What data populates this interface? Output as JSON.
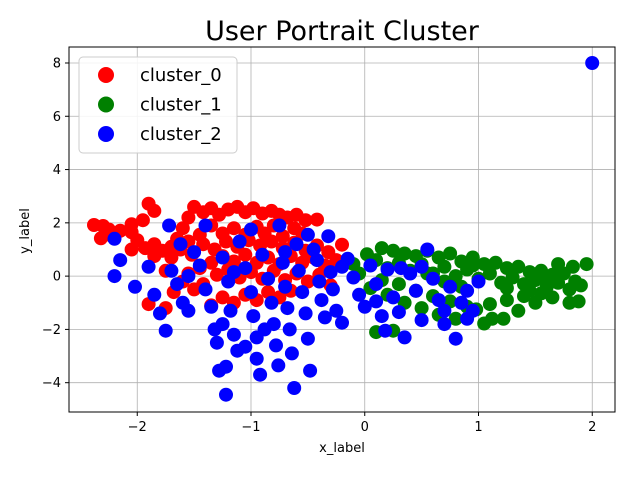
{
  "chart_data": {
    "type": "scatter",
    "title": "User Portrait Cluster",
    "xlabel": "x_label",
    "ylabel": "y_label",
    "xlim": [
      -2.6,
      2.2
    ],
    "ylim": [
      -5.1,
      8.6
    ],
    "x_ticks": [
      -2,
      -1,
      0,
      1,
      2
    ],
    "y_ticks": [
      -4,
      -2,
      0,
      2,
      4,
      6,
      8
    ],
    "grid": true,
    "legend_position": "top-left",
    "series": [
      {
        "name": "cluster_0",
        "color": "#ff0000",
        "points": [
          [
            -2.38,
            1.92
          ],
          [
            -2.3,
            1.88
          ],
          [
            -2.32,
            1.42
          ],
          [
            -2.22,
            1.5
          ],
          [
            -2.05,
            1.95
          ],
          [
            -2.05,
            1.65
          ],
          [
            -2.05,
            1.0
          ],
          [
            -1.9,
            2.72
          ],
          [
            -1.85,
            2.45
          ],
          [
            -1.93,
            1.05
          ],
          [
            -1.85,
            1.2
          ],
          [
            -1.78,
            0.95
          ],
          [
            -1.7,
            1.1
          ],
          [
            -1.65,
            1.4
          ],
          [
            -1.6,
            1.8
          ],
          [
            -1.55,
            2.2
          ],
          [
            -1.5,
            2.6
          ],
          [
            -1.42,
            2.4
          ],
          [
            -1.35,
            2.55
          ],
          [
            -1.28,
            2.3
          ],
          [
            -1.2,
            2.5
          ],
          [
            -1.12,
            2.6
          ],
          [
            -1.05,
            2.4
          ],
          [
            -0.98,
            2.55
          ],
          [
            -0.9,
            2.35
          ],
          [
            -0.82,
            2.45
          ],
          [
            -0.75,
            2.3
          ],
          [
            -0.68,
            2.2
          ],
          [
            -0.6,
            2.3
          ],
          [
            -0.52,
            2.1
          ],
          [
            -0.42,
            2.12
          ],
          [
            -0.55,
            1.6
          ],
          [
            -0.62,
            1.8
          ],
          [
            -0.72,
            1.5
          ],
          [
            -0.8,
            1.9
          ],
          [
            -0.88,
            1.6
          ],
          [
            -0.95,
            1.85
          ],
          [
            -1.05,
            1.55
          ],
          [
            -1.15,
            1.8
          ],
          [
            -1.25,
            1.6
          ],
          [
            -1.35,
            1.9
          ],
          [
            -1.45,
            1.55
          ],
          [
            -1.55,
            1.3
          ],
          [
            -1.62,
            1.0
          ],
          [
            -1.7,
            0.7
          ],
          [
            -1.52,
            0.8
          ],
          [
            -1.42,
            1.2
          ],
          [
            -1.32,
            1.0
          ],
          [
            -1.22,
            1.3
          ],
          [
            -1.12,
            1.1
          ],
          [
            -1.02,
            1.35
          ],
          [
            -0.92,
            1.15
          ],
          [
            -0.82,
            1.3
          ],
          [
            -0.72,
            1.05
          ],
          [
            -0.62,
            1.25
          ],
          [
            -0.52,
            0.95
          ],
          [
            -0.42,
            1.15
          ],
          [
            -0.32,
            0.9
          ],
          [
            -0.2,
            1.18
          ],
          [
            -0.25,
            0.6
          ],
          [
            -0.35,
            0.4
          ],
          [
            -0.45,
            0.7
          ],
          [
            -0.55,
            0.5
          ],
          [
            -0.65,
            0.75
          ],
          [
            -0.75,
            0.45
          ],
          [
            -0.85,
            0.7
          ],
          [
            -0.95,
            0.5
          ],
          [
            -1.05,
            0.8
          ],
          [
            -1.15,
            0.55
          ],
          [
            -1.25,
            0.75
          ],
          [
            -1.35,
            0.5
          ],
          [
            -1.45,
            0.3
          ],
          [
            -1.55,
            0.1
          ],
          [
            -1.6,
            -0.2
          ],
          [
            -1.5,
            -0.5
          ],
          [
            -1.42,
            -0.3
          ],
          [
            -1.3,
            0.05
          ],
          [
            -1.2,
            0.25
          ],
          [
            -1.1,
            -0.05
          ],
          [
            -1.0,
            0.15
          ],
          [
            -0.9,
            -0.1
          ],
          [
            -0.8,
            0.2
          ],
          [
            -0.7,
            -0.15
          ],
          [
            -0.6,
            0.1
          ],
          [
            -0.5,
            -0.2
          ],
          [
            -0.4,
            0.05
          ],
          [
            -0.3,
            -0.35
          ],
          [
            -0.65,
            -0.55
          ],
          [
            -0.75,
            -0.8
          ],
          [
            -0.85,
            -0.6
          ],
          [
            -0.95,
            -0.9
          ],
          [
            -1.05,
            -0.7
          ],
          [
            -1.15,
            -1.0
          ],
          [
            -1.25,
            -0.8
          ],
          [
            -1.35,
            -1.1
          ],
          [
            -1.9,
            -1.05
          ],
          [
            -1.75,
            -1.2
          ],
          [
            -1.68,
            -0.6
          ],
          [
            -1.75,
            0.2
          ],
          [
            -1.85,
            0.75
          ],
          [
            -2.0,
            1.35
          ],
          [
            -1.95,
            2.1
          ],
          [
            -2.15,
            1.7
          ],
          [
            -2.25,
            1.75
          ]
        ]
      },
      {
        "name": "cluster_1",
        "color": "#008000",
        "points": [
          [
            -0.1,
            0.45
          ],
          [
            0.02,
            0.82
          ],
          [
            0.1,
            0.6
          ],
          [
            0.15,
            1.05
          ],
          [
            0.2,
            0.3
          ],
          [
            0.25,
            0.95
          ],
          [
            0.3,
            0.5
          ],
          [
            0.35,
            0.85
          ],
          [
            0.4,
            0.2
          ],
          [
            0.45,
            0.75
          ],
          [
            0.5,
            0.45
          ],
          [
            0.55,
            0.95
          ],
          [
            0.6,
            0.1
          ],
          [
            0.65,
            0.7
          ],
          [
            0.7,
            0.35
          ],
          [
            0.75,
            0.85
          ],
          [
            0.8,
            0.0
          ],
          [
            0.85,
            0.55
          ],
          [
            0.9,
            0.25
          ],
          [
            0.95,
            0.7
          ],
          [
            1.0,
            -0.1
          ],
          [
            1.05,
            0.45
          ],
          [
            1.1,
            0.1
          ],
          [
            1.15,
            0.5
          ],
          [
            1.2,
            -0.25
          ],
          [
            1.25,
            0.3
          ],
          [
            1.3,
            -0.05
          ],
          [
            1.35,
            0.35
          ],
          [
            1.4,
            -0.3
          ],
          [
            1.45,
            0.15
          ],
          [
            1.5,
            -0.15
          ],
          [
            1.55,
            0.2
          ],
          [
            1.6,
            -0.4
          ],
          [
            1.65,
            0.05
          ],
          [
            1.7,
            -0.25
          ],
          [
            1.75,
            0.1
          ],
          [
            1.8,
            -0.5
          ],
          [
            1.85,
            -0.2
          ],
          [
            1.9,
            -0.35
          ],
          [
            1.83,
            0.35
          ],
          [
            1.95,
            0.45
          ],
          [
            1.7,
            0.45
          ],
          [
            1.55,
            -0.65
          ],
          [
            1.4,
            -0.75
          ],
          [
            1.25,
            -0.9
          ],
          [
            1.1,
            -1.05
          ],
          [
            0.98,
            -1.25
          ],
          [
            1.12,
            -1.6
          ],
          [
            1.22,
            -1.6
          ],
          [
            1.05,
            -1.78
          ],
          [
            0.9,
            -1.15
          ],
          [
            0.75,
            -0.95
          ],
          [
            0.6,
            -0.75
          ],
          [
            0.45,
            -0.55
          ],
          [
            0.3,
            -0.3
          ],
          [
            0.15,
            -0.15
          ],
          [
            0.05,
            -0.45
          ],
          [
            -0.05,
            0.1
          ],
          [
            0.2,
            -0.7
          ],
          [
            0.35,
            -1.0
          ],
          [
            0.5,
            -1.2
          ],
          [
            0.65,
            -1.45
          ],
          [
            0.8,
            -1.6
          ],
          [
            1.35,
            -1.3
          ],
          [
            1.5,
            -1.0
          ],
          [
            1.65,
            -0.8
          ],
          [
            1.8,
            -1.0
          ],
          [
            1.88,
            -0.95
          ],
          [
            0.1,
            -2.1
          ],
          [
            0.25,
            -2.05
          ],
          [
            0.95,
            0.4
          ],
          [
            0.85,
            -0.4
          ],
          [
            0.7,
            -0.2
          ],
          [
            0.55,
            0.1
          ],
          [
            1.25,
            -0.45
          ],
          [
            1.45,
            -0.55
          ],
          [
            1.6,
            -0.1
          ]
        ]
      },
      {
        "name": "cluster_2",
        "color": "#0000ff",
        "points": [
          [
            2.0,
            8.0
          ],
          [
            -2.2,
            1.4
          ],
          [
            -2.15,
            0.6
          ],
          [
            -2.2,
            0.0
          ],
          [
            -2.02,
            -0.4
          ],
          [
            -1.9,
            0.35
          ],
          [
            -1.85,
            -0.7
          ],
          [
            -1.8,
            -1.4
          ],
          [
            -1.75,
            -2.05
          ],
          [
            -1.72,
            1.9
          ],
          [
            -1.7,
            0.2
          ],
          [
            -1.65,
            -0.3
          ],
          [
            -1.6,
            -1.0
          ],
          [
            -1.55,
            -1.3
          ],
          [
            -1.5,
            0.9
          ],
          [
            -1.45,
            0.4
          ],
          [
            -1.4,
            -0.5
          ],
          [
            -1.35,
            -1.15
          ],
          [
            -1.32,
            -2.0
          ],
          [
            -1.3,
            -2.5
          ],
          [
            -1.28,
            -3.55
          ],
          [
            -1.25,
            0.7
          ],
          [
            -1.2,
            -0.2
          ],
          [
            -1.18,
            -1.3
          ],
          [
            -1.15,
            -2.2
          ],
          [
            -1.12,
            -2.8
          ],
          [
            -1.22,
            -3.4
          ],
          [
            -1.22,
            -4.45
          ],
          [
            -1.1,
            1.3
          ],
          [
            -1.05,
            0.3
          ],
          [
            -1.0,
            -0.6
          ],
          [
            -0.98,
            -1.5
          ],
          [
            -0.95,
            -2.3
          ],
          [
            -0.92,
            -3.7
          ],
          [
            -0.9,
            0.8
          ],
          [
            -0.85,
            -0.1
          ],
          [
            -0.82,
            -1.0
          ],
          [
            -0.8,
            -1.8
          ],
          [
            -0.78,
            -2.6
          ],
          [
            -0.76,
            -3.35
          ],
          [
            -0.75,
            1.9
          ],
          [
            -0.72,
            0.5
          ],
          [
            -0.7,
            -0.4
          ],
          [
            -0.68,
            -1.2
          ],
          [
            -0.66,
            -2.0
          ],
          [
            -0.64,
            -2.9
          ],
          [
            -0.62,
            -4.2
          ],
          [
            -0.6,
            1.2
          ],
          [
            -0.58,
            0.2
          ],
          [
            -0.55,
            -0.6
          ],
          [
            -0.52,
            -1.4
          ],
          [
            -0.5,
            -2.35
          ],
          [
            -0.48,
            -3.55
          ],
          [
            -0.45,
            1.0
          ],
          [
            -0.42,
            0.6
          ],
          [
            -0.4,
            -0.2
          ],
          [
            -0.38,
            -0.9
          ],
          [
            -0.35,
            -1.55
          ],
          [
            -0.32,
            1.5
          ],
          [
            -0.3,
            0.15
          ],
          [
            -0.28,
            -0.5
          ],
          [
            -0.25,
            -1.3
          ],
          [
            -0.2,
            -1.75
          ],
          [
            -0.15,
            0.65
          ],
          [
            -0.1,
            -0.05
          ],
          [
            -0.05,
            -0.7
          ],
          [
            0.0,
            -1.15
          ],
          [
            0.05,
            0.4
          ],
          [
            0.1,
            -0.3
          ],
          [
            0.15,
            -1.5
          ],
          [
            0.2,
            0.25
          ],
          [
            0.25,
            -0.8
          ],
          [
            0.3,
            -1.35
          ],
          [
            0.35,
            -2.3
          ],
          [
            0.4,
            0.1
          ],
          [
            0.45,
            -0.55
          ],
          [
            0.5,
            -1.65
          ],
          [
            0.55,
            1.0
          ],
          [
            0.6,
            -0.1
          ],
          [
            0.65,
            -0.9
          ],
          [
            0.7,
            -1.8
          ],
          [
            0.75,
            -0.4
          ],
          [
            0.8,
            -2.35
          ],
          [
            0.85,
            -1.0
          ],
          [
            0.9,
            -0.55
          ],
          [
            0.95,
            -1.3
          ],
          [
            1.0,
            -0.2
          ],
          [
            0.32,
            0.3
          ],
          [
            0.18,
            -2.05
          ],
          [
            -1.0,
            1.75
          ],
          [
            -1.4,
            1.9
          ],
          [
            -1.55,
            0.0
          ],
          [
            -1.62,
            1.2
          ],
          [
            -1.15,
            0.15
          ],
          [
            -1.25,
            -1.8
          ],
          [
            -0.88,
            -2.0
          ],
          [
            -0.7,
            0.9
          ],
          [
            -0.5,
            1.55
          ],
          [
            -0.2,
            0.35
          ],
          [
            0.1,
            -0.95
          ],
          [
            0.5,
            0.35
          ],
          [
            0.7,
            -1.3
          ],
          [
            0.9,
            -1.6
          ],
          [
            -1.05,
            -2.65
          ],
          [
            -0.95,
            -3.1
          ]
        ]
      }
    ]
  }
}
